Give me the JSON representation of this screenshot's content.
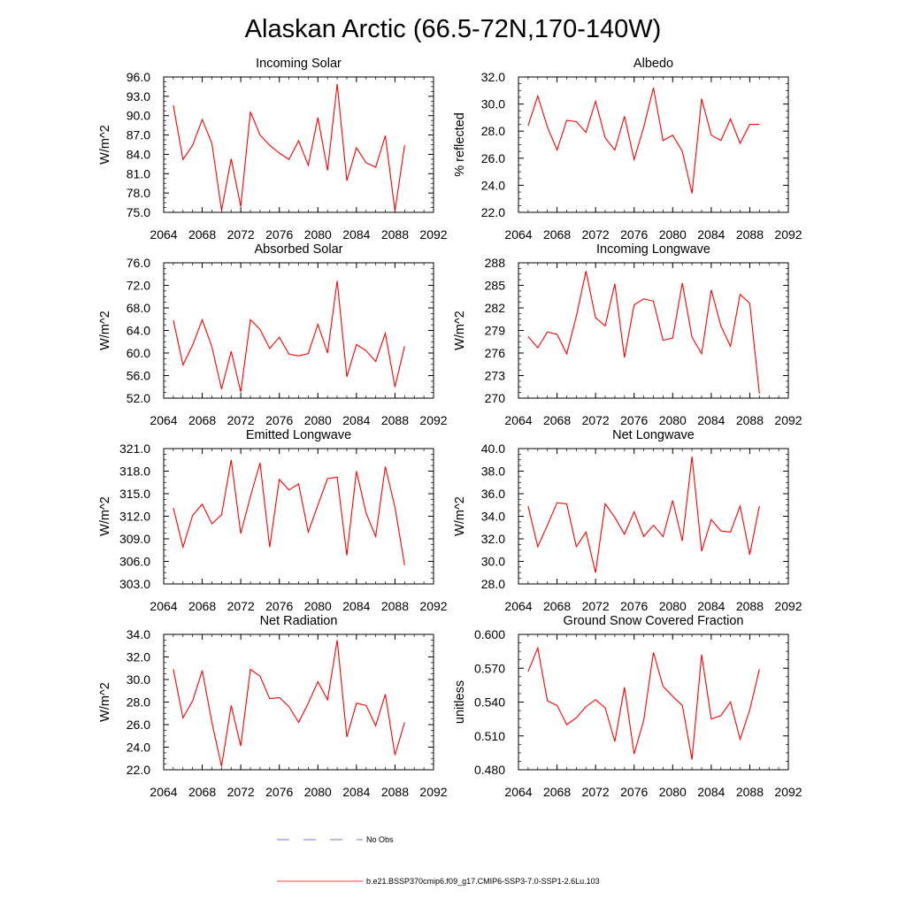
{
  "title": "Alaskan Arctic (66.5-72N,170-140W)",
  "chart_data": [
    {
      "type": "line",
      "title": "Incoming Solar",
      "ylabel": "W/m^2",
      "xlim": [
        2064,
        2092
      ],
      "xticks": [
        "2064",
        "2068",
        "2072",
        "2076",
        "2080",
        "2084",
        "2088",
        "2092"
      ],
      "ylim": [
        75.0,
        96.0
      ],
      "yticks": [
        "75.0",
        "78.0",
        "81.0",
        "84.0",
        "87.0",
        "90.0",
        "93.0",
        "96.0"
      ],
      "x": [
        2065,
        2066,
        2067,
        2068,
        2069,
        2070,
        2071,
        2072,
        2073,
        2074,
        2075,
        2076,
        2077,
        2078,
        2079,
        2080,
        2081,
        2082,
        2083,
        2084,
        2085,
        2086,
        2087,
        2088,
        2089
      ],
      "series": [
        {
          "values": [
            91.6,
            83.2,
            85.4,
            89.4,
            85.7,
            75.3,
            83.3,
            75.9,
            90.6,
            87.0,
            85.4,
            84.2,
            83.2,
            86.1,
            82.3,
            89.7,
            81.5,
            94.9,
            79.9,
            85.0,
            82.7,
            82.0,
            86.9,
            75.2,
            85.4
          ],
          "color": "#ff0000"
        }
      ]
    },
    {
      "type": "line",
      "title": "Albedo",
      "ylabel": "% reflected",
      "xlim": [
        2064,
        2092
      ],
      "xticks": [
        "2064",
        "2068",
        "2072",
        "2076",
        "2080",
        "2084",
        "2088",
        "2092"
      ],
      "ylim": [
        22.0,
        32.0
      ],
      "yticks": [
        "22.0",
        "24.0",
        "26.0",
        "28.0",
        "30.0",
        "32.0"
      ],
      "x": [
        2065,
        2066,
        2067,
        2068,
        2069,
        2070,
        2071,
        2072,
        2073,
        2074,
        2075,
        2076,
        2077,
        2078,
        2079,
        2080,
        2081,
        2082,
        2083,
        2084,
        2085,
        2086,
        2087,
        2088,
        2089
      ],
      "series": [
        {
          "values": [
            28.4,
            30.6,
            28.3,
            26.6,
            28.8,
            28.7,
            27.9,
            30.2,
            27.5,
            26.6,
            29.1,
            25.9,
            28.3,
            31.2,
            27.3,
            27.7,
            26.5,
            23.4,
            30.4,
            27.7,
            27.3,
            28.9,
            27.1,
            28.5,
            28.5
          ],
          "color": "#ff0000"
        }
      ]
    },
    {
      "type": "line",
      "title": "Absorbed Solar",
      "ylabel": "W/m^2",
      "xlim": [
        2064,
        2092
      ],
      "xticks": [
        "2064",
        "2068",
        "2072",
        "2076",
        "2080",
        "2084",
        "2088",
        "2092"
      ],
      "ylim": [
        52.0,
        76.0
      ],
      "yticks": [
        "52.0",
        "56.0",
        "60.0",
        "64.0",
        "68.0",
        "72.0",
        "76.0"
      ],
      "x": [
        2065,
        2066,
        2067,
        2068,
        2069,
        2070,
        2071,
        2072,
        2073,
        2074,
        2075,
        2076,
        2077,
        2078,
        2079,
        2080,
        2081,
        2082,
        2083,
        2084,
        2085,
        2086,
        2087,
        2088,
        2089
      ],
      "series": [
        {
          "values": [
            65.8,
            57.9,
            61.4,
            65.9,
            61.1,
            53.6,
            60.3,
            53.1,
            65.9,
            64.2,
            60.8,
            62.8,
            59.8,
            59.5,
            59.9,
            65.1,
            60.0,
            72.8,
            55.8,
            61.5,
            60.4,
            58.5,
            63.5,
            54.0,
            61.2
          ],
          "color": "#ff0000"
        }
      ]
    },
    {
      "type": "line",
      "title": "Incoming Longwave",
      "ylabel": "W/m^2",
      "xlim": [
        2064,
        2092
      ],
      "xticks": [
        "2064",
        "2068",
        "2072",
        "2076",
        "2080",
        "2084",
        "2088",
        "2092"
      ],
      "ylim": [
        270,
        288
      ],
      "yticks": [
        "270",
        "273",
        "276",
        "279",
        "282",
        "285",
        "288"
      ],
      "x": [
        2065,
        2066,
        2067,
        2068,
        2069,
        2070,
        2071,
        2072,
        2073,
        2074,
        2075,
        2076,
        2077,
        2078,
        2079,
        2080,
        2081,
        2082,
        2083,
        2084,
        2085,
        2086,
        2087,
        2088,
        2089
      ],
      "series": [
        {
          "values": [
            278.2,
            276.7,
            278.8,
            278.5,
            275.9,
            280.9,
            286.9,
            280.7,
            279.6,
            285.2,
            275.4,
            282.4,
            283.2,
            282.9,
            277.7,
            278.0,
            285.3,
            278.1,
            275.9,
            284.4,
            279.6,
            276.9,
            283.8,
            282.6,
            270.6
          ],
          "color": "#ff0000"
        }
      ]
    },
    {
      "type": "line",
      "title": "Emitted Longwave",
      "ylabel": "W/m^2",
      "xlim": [
        2064,
        2092
      ],
      "xticks": [
        "2064",
        "2068",
        "2072",
        "2076",
        "2080",
        "2084",
        "2088",
        "2092"
      ],
      "ylim": [
        303.0,
        321.0
      ],
      "yticks": [
        "303.0",
        "306.0",
        "309.0",
        "312.0",
        "315.0",
        "318.0",
        "321.0"
      ],
      "x": [
        2065,
        2066,
        2067,
        2068,
        2069,
        2070,
        2071,
        2072,
        2073,
        2074,
        2075,
        2076,
        2077,
        2078,
        2079,
        2080,
        2081,
        2082,
        2083,
        2084,
        2085,
        2086,
        2087,
        2088,
        2089
      ],
      "series": [
        {
          "values": [
            313.1,
            307.9,
            312.1,
            313.6,
            311.0,
            312.2,
            319.5,
            309.7,
            314.6,
            319.1,
            307.9,
            316.9,
            315.5,
            316.3,
            309.9,
            313.5,
            317.0,
            317.2,
            306.8,
            318.0,
            312.4,
            309.3,
            318.6,
            313.2,
            305.5
          ],
          "color": "#ff0000"
        }
      ]
    },
    {
      "type": "line",
      "title": "Net Longwave",
      "ylabel": "W/m^2",
      "xlim": [
        2064,
        2092
      ],
      "xticks": [
        "2064",
        "2068",
        "2072",
        "2076",
        "2080",
        "2084",
        "2088",
        "2092"
      ],
      "ylim": [
        28.0,
        40.0
      ],
      "yticks": [
        "28.0",
        "30.0",
        "32.0",
        "34.0",
        "36.0",
        "38.0",
        "40.0"
      ],
      "x": [
        2065,
        2066,
        2067,
        2068,
        2069,
        2070,
        2071,
        2072,
        2073,
        2074,
        2075,
        2076,
        2077,
        2078,
        2079,
        2080,
        2081,
        2082,
        2083,
        2084,
        2085,
        2086,
        2087,
        2088,
        2089
      ],
      "series": [
        {
          "values": [
            34.9,
            31.3,
            33.2,
            35.2,
            35.1,
            31.3,
            32.6,
            29.0,
            35.1,
            33.9,
            32.4,
            34.4,
            32.2,
            33.2,
            32.2,
            35.4,
            31.8,
            39.3,
            30.9,
            33.7,
            32.7,
            32.6,
            34.9,
            30.6,
            34.9
          ],
          "color": "#ff0000"
        }
      ]
    },
    {
      "type": "line",
      "title": "Net Radiation",
      "ylabel": "W/m^2",
      "xlim": [
        2064,
        2092
      ],
      "xticks": [
        "2064",
        "2068",
        "2072",
        "2076",
        "2080",
        "2084",
        "2088",
        "2092"
      ],
      "ylim": [
        22.0,
        34.0
      ],
      "yticks": [
        "22.0",
        "24.0",
        "26.0",
        "28.0",
        "30.0",
        "32.0",
        "34.0"
      ],
      "x": [
        2065,
        2066,
        2067,
        2068,
        2069,
        2070,
        2071,
        2072,
        2073,
        2074,
        2075,
        2076,
        2077,
        2078,
        2079,
        2080,
        2081,
        2082,
        2083,
        2084,
        2085,
        2086,
        2087,
        2088,
        2089
      ],
      "series": [
        {
          "values": [
            30.9,
            26.6,
            28.1,
            30.8,
            26.2,
            22.3,
            27.7,
            24.1,
            30.9,
            30.3,
            28.3,
            28.4,
            27.6,
            26.2,
            27.9,
            29.8,
            28.2,
            33.5,
            24.9,
            27.9,
            27.7,
            25.9,
            28.7,
            23.3,
            26.2
          ],
          "color": "#ff0000"
        }
      ]
    },
    {
      "type": "line",
      "title": "Ground Snow Covered Fraction",
      "ylabel": "unitless",
      "xlim": [
        2064,
        2092
      ],
      "xticks": [
        "2064",
        "2068",
        "2072",
        "2076",
        "2080",
        "2084",
        "2088",
        "2092"
      ],
      "ylim": [
        0.48,
        0.6
      ],
      "yticks": [
        "0.480",
        "0.510",
        "0.540",
        "0.570",
        "0.600"
      ],
      "x": [
        2065,
        2066,
        2067,
        2068,
        2069,
        2070,
        2071,
        2072,
        2073,
        2074,
        2075,
        2076,
        2077,
        2078,
        2079,
        2080,
        2081,
        2082,
        2083,
        2084,
        2085,
        2086,
        2087,
        2088,
        2089
      ],
      "series": [
        {
          "values": [
            0.567,
            0.588,
            0.541,
            0.537,
            0.52,
            0.526,
            0.536,
            0.542,
            0.535,
            0.505,
            0.553,
            0.494,
            0.524,
            0.584,
            0.554,
            0.545,
            0.537,
            0.489,
            0.582,
            0.525,
            0.528,
            0.54,
            0.507,
            0.533,
            0.569
          ],
          "color": "#ff0000"
        }
      ]
    }
  ],
  "legend": [
    {
      "label": "No Obs",
      "color": "#4a4ad0",
      "dashed": true
    },
    {
      "label": "b.e21.BSSP370cmip6.f09_g17.CMIP6-SSP3-7.0-SSP1-2.6Lu.103",
      "color": "#ff0000",
      "dashed": false
    }
  ]
}
